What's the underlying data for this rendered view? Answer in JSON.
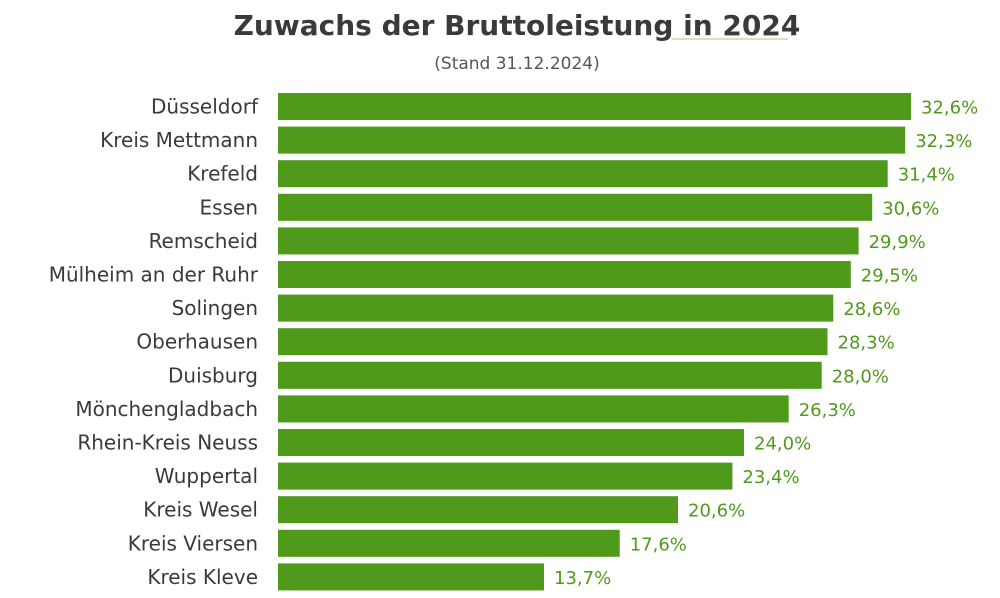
{
  "chart_data": {
    "type": "bar",
    "orientation": "horizontal",
    "title": "Zuwachs der Bruttoleistung in 2024",
    "subtitle": "(Stand 31.12.2024)",
    "categories": [
      "Düsseldorf",
      "Kreis Mettmann",
      "Krefeld",
      "Essen",
      "Remscheid",
      "Mülheim an der Ruhr",
      "Solingen",
      "Oberhausen",
      "Duisburg",
      "Mönchengladbach",
      "Rhein-Kreis Neuss",
      "Wuppertal",
      "Kreis Wesel",
      "Kreis Viersen",
      "Kreis Kleve"
    ],
    "values": [
      32.6,
      32.3,
      31.4,
      30.6,
      29.9,
      29.5,
      28.6,
      28.3,
      28.0,
      26.3,
      24.0,
      23.4,
      20.6,
      17.6,
      13.7
    ],
    "value_labels": [
      "32,6%",
      "32,3%",
      "31,4%",
      "30,6%",
      "29,9%",
      "29,5%",
      "28,6%",
      "28,3%",
      "28,0%",
      "26,3%",
      "24,0%",
      "23,4%",
      "20,6%",
      "17,6%",
      "13,7%"
    ],
    "xlim": [
      0,
      32.6
    ],
    "grid": false,
    "legend": "none",
    "bar_color": "#4f9a1a",
    "value_label_color": "#4f9a1a",
    "title_underline_color": "#c5d9a8"
  }
}
